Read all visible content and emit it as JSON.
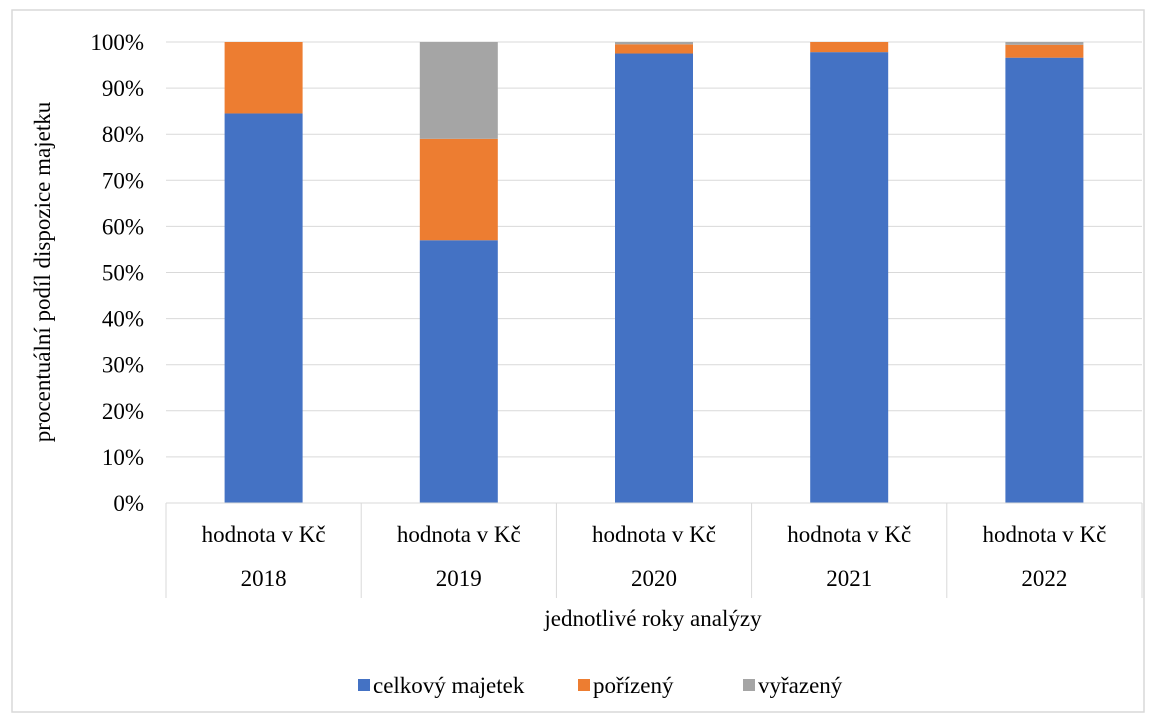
{
  "chart_data": {
    "type": "bar",
    "stacked": true,
    "percent_stacked": true,
    "categories": [
      {
        "name": "hodnota v Kč",
        "group": "2018"
      },
      {
        "name": "hodnota v Kč",
        "group": "2019"
      },
      {
        "name": "hodnota v Kč",
        "group": "2020"
      },
      {
        "name": "hodnota v Kč",
        "group": "2021"
      },
      {
        "name": "hodnota v Kč",
        "group": "2022"
      }
    ],
    "series": [
      {
        "name": "celkový majetek",
        "color": "#4472c4",
        "values": [
          84.5,
          57.0,
          97.5,
          97.8,
          96.6
        ]
      },
      {
        "name": "pořízený",
        "color": "#ed7d31",
        "values": [
          15.5,
          22.0,
          2.0,
          2.2,
          2.8
        ]
      },
      {
        "name": "vyřazený",
        "color": "#a5a5a5",
        "values": [
          0.0,
          21.0,
          0.5,
          0.0,
          0.6
        ]
      }
    ],
    "xlabel": "jednotlivé roky analýzy",
    "ylabel": "procentuální podíl dispozice majetku",
    "ylim": [
      0,
      100
    ],
    "yticks": [
      "0%",
      "10%",
      "20%",
      "30%",
      "40%",
      "50%",
      "60%",
      "70%",
      "80%",
      "90%",
      "100%"
    ],
    "grid": true,
    "legend_position": "bottom"
  }
}
